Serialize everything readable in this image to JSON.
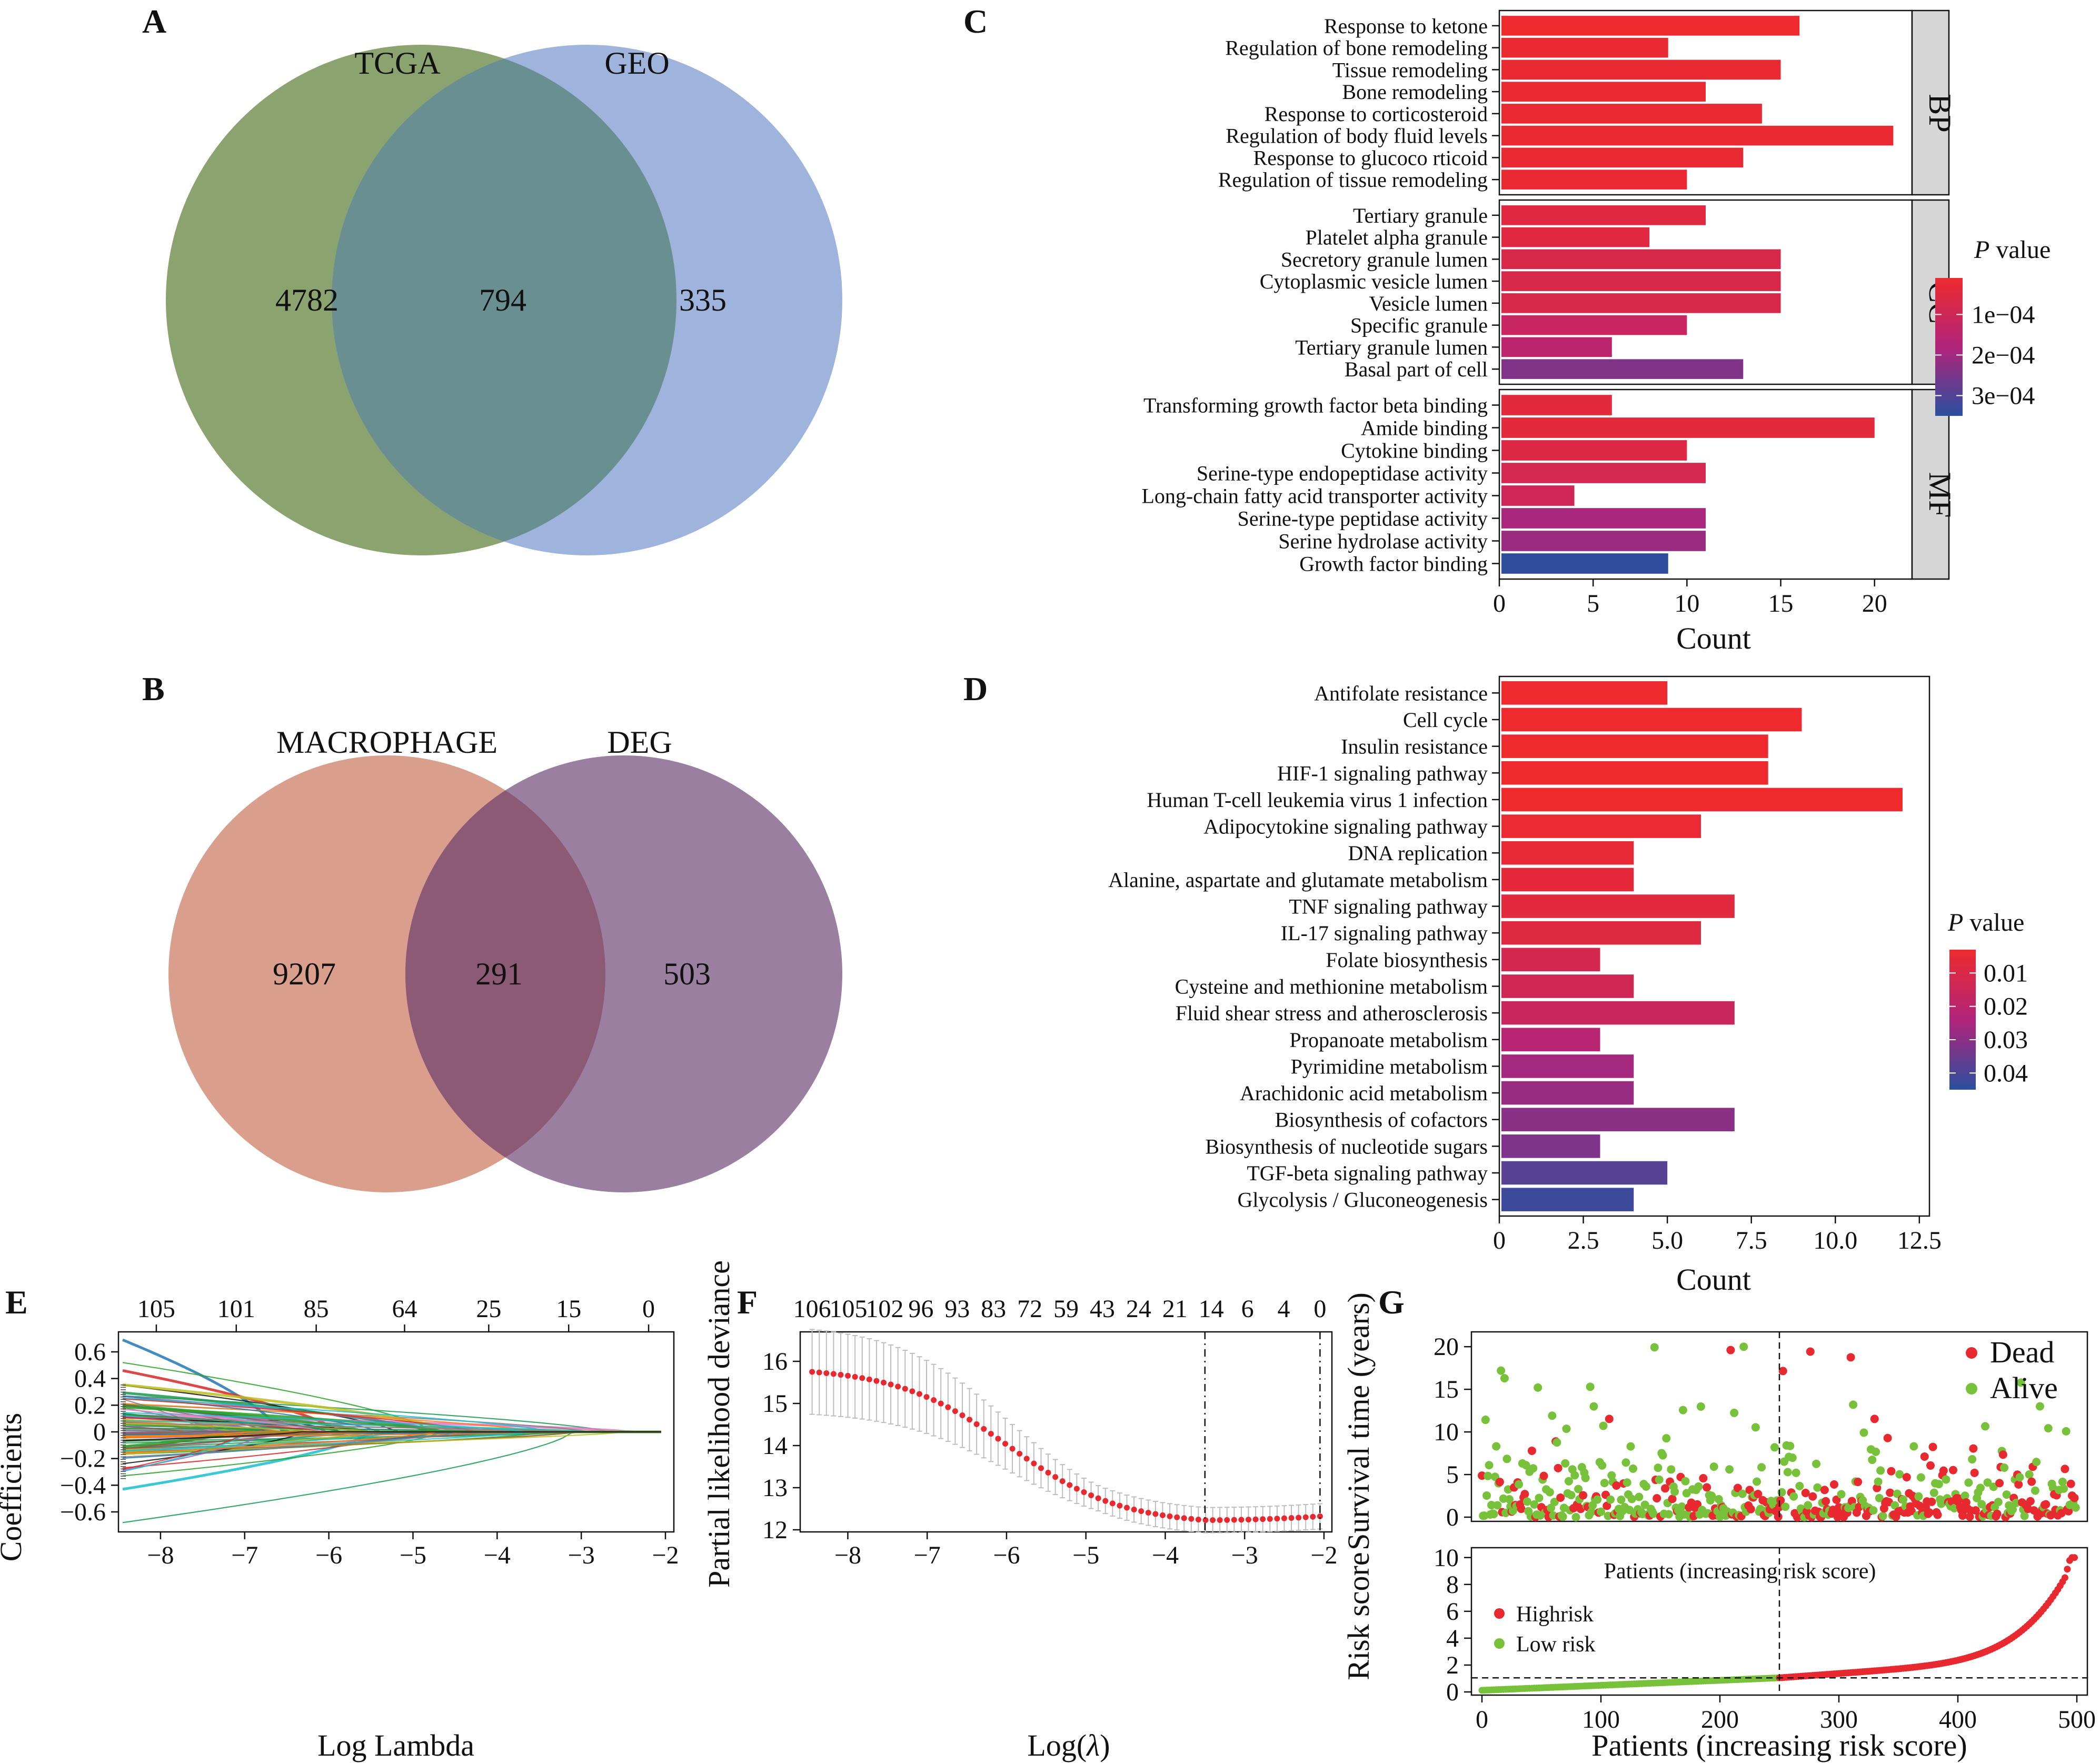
{
  "panels": {
    "A": "A",
    "B": "B",
    "C": "C",
    "D": "D",
    "E": "E",
    "F": "F",
    "G": "G"
  },
  "venn_a": {
    "left_label": "TCGA",
    "right_label": "GEO",
    "left_only": "4782",
    "overlap": "794",
    "right_only": "335",
    "colors": {
      "left": "#8aa36f",
      "right": "#9fb4dc",
      "overlap": "#6a8f91"
    }
  },
  "venn_b": {
    "left_label": "MACROPHAGE",
    "right_label": "DEG",
    "left_only": "9207",
    "overlap": "291",
    "right_only": "503",
    "colors": {
      "left": "#d99f8c",
      "right": "#9b7fa0",
      "overlap": "#8c5a74"
    }
  },
  "chart_data": [
    {
      "panel": "C",
      "type": "bar",
      "orientation": "horizontal",
      "xlabel": "Count",
      "xlim": [
        0,
        22
      ],
      "xticks": [
        0,
        5,
        10,
        15,
        20
      ],
      "facets": [
        {
          "name": "BP",
          "terms": [
            {
              "term": "Response to ketone",
              "count": 16,
              "p": 1e-05
            },
            {
              "term": "Regulation of bone remodeling",
              "count": 9,
              "p": 2e-05
            },
            {
              "term": "Tissue remodeling",
              "count": 15,
              "p": 2e-05
            },
            {
              "term": "Bone remodeling",
              "count": 11,
              "p": 2e-05
            },
            {
              "term": "Response to corticosteroid",
              "count": 14,
              "p": 2e-05
            },
            {
              "term": "Regulation of body fluid levels",
              "count": 21,
              "p": 2e-05
            },
            {
              "term": "Response to glucoco rticoid",
              "count": 13,
              "p": 2e-05
            },
            {
              "term": "Regulation of tissue remodeling",
              "count": 10,
              "p": 2e-05
            }
          ]
        },
        {
          "name": "CC",
          "terms": [
            {
              "term": "Tertiary granule",
              "count": 11,
              "p": 5e-05
            },
            {
              "term": "Platelet alpha granule",
              "count": 8,
              "p": 5e-05
            },
            {
              "term": "Secretory granule lumen",
              "count": 15,
              "p": 7e-05
            },
            {
              "term": "Cytoplasmic vesicle lumen",
              "count": 15,
              "p": 7e-05
            },
            {
              "term": "Vesicle lumen",
              "count": 15,
              "p": 7e-05
            },
            {
              "term": "Specific granule",
              "count": 10,
              "p": 0.00012
            },
            {
              "term": "Tertiary granule lumen",
              "count": 6,
              "p": 0.00015
            },
            {
              "term": "Basal part of cell",
              "count": 13,
              "p": 0.00024
            }
          ]
        },
        {
          "name": "MF",
          "terms": [
            {
              "term": "Transforming growth factor beta binding",
              "count": 6,
              "p": 4e-05
            },
            {
              "term": "Amide binding",
              "count": 20,
              "p": 4e-05
            },
            {
              "term": "Cytokine binding",
              "count": 10,
              "p": 6e-05
            },
            {
              "term": "Serine-type endopeptidase activity",
              "count": 11,
              "p": 8e-05
            },
            {
              "term": "Long-chain fatty acid transporter activity",
              "count": 4,
              "p": 0.0001
            },
            {
              "term": "Serine-type peptidase activity",
              "count": 11,
              "p": 0.00019
            },
            {
              "term": "Serine hydrolase activity",
              "count": 11,
              "p": 0.00021
            },
            {
              "term": "Growth factor binding",
              "count": 9,
              "p": 0.00034
            }
          ]
        }
      ],
      "legend": {
        "title_italic": "P",
        "title_rest": " value",
        "ticks": [
          "1e−04",
          "2e−04",
          "3e−04"
        ],
        "range": [
          1e-05,
          0.00035
        ],
        "colors": [
          "#ee2a2f",
          "#b1247a",
          "#2a4f9f"
        ]
      }
    },
    {
      "panel": "D",
      "type": "bar",
      "orientation": "horizontal",
      "xlabel": "Count",
      "xlim": [
        0,
        12.8
      ],
      "xticks": [
        "0",
        "2.5",
        "5.0",
        "7.5",
        "10.0",
        "12.5"
      ],
      "terms": [
        {
          "term": "Antifolate resistance",
          "count": 5,
          "p": 0.003
        },
        {
          "term": "Cell cycle",
          "count": 9,
          "p": 0.003
        },
        {
          "term": "Insulin resistance",
          "count": 8,
          "p": 0.003
        },
        {
          "term": "HIF-1 signaling pathway",
          "count": 8,
          "p": 0.003
        },
        {
          "term": "Human T-cell leukemia virus 1 infection",
          "count": 12,
          "p": 0.003
        },
        {
          "term": "Adipocytokine signaling pathway",
          "count": 6,
          "p": 0.004
        },
        {
          "term": "DNA replication",
          "count": 4,
          "p": 0.005
        },
        {
          "term": "Alanine, aspartate and glutamate metabolism",
          "count": 4,
          "p": 0.006
        },
        {
          "term": "TNF signaling pathway",
          "count": 7,
          "p": 0.007
        },
        {
          "term": "IL-17 signaling pathway",
          "count": 6,
          "p": 0.008
        },
        {
          "term": "Folate biosynthesis",
          "count": 3,
          "p": 0.012
        },
        {
          "term": "Cysteine and methionine metabolism",
          "count": 4,
          "p": 0.014
        },
        {
          "term": "Fluid shear stress and atherosclerosis",
          "count": 7,
          "p": 0.016
        },
        {
          "term": "Propanoate metabolism",
          "count": 3,
          "p": 0.022
        },
        {
          "term": "Pyrimidine metabolism",
          "count": 4,
          "p": 0.026
        },
        {
          "term": "Arachidonic acid metabolism",
          "count": 4,
          "p": 0.028
        },
        {
          "term": "Biosynthesis of cofactors",
          "count": 7,
          "p": 0.03
        },
        {
          "term": "Biosynthesis of nucleotide sugars",
          "count": 3,
          "p": 0.032
        },
        {
          "term": "TGF-beta signaling pathway",
          "count": 5,
          "p": 0.038
        },
        {
          "term": "Glycolysis / Gluconeogenesis",
          "count": 4,
          "p": 0.042
        }
      ],
      "legend": {
        "title_italic": "P",
        "title_rest": " value",
        "ticks": [
          "0.01",
          "0.02",
          "0.03",
          "0.04"
        ],
        "range": [
          0.003,
          0.045
        ],
        "colors": [
          "#ee2a2f",
          "#b1247a",
          "#2a4f9f"
        ]
      }
    },
    {
      "panel": "E",
      "type": "line",
      "xlabel": "Log Lambda",
      "ylabel": "Coefficients",
      "xlim": [
        -8.5,
        -1.9
      ],
      "ylim": [
        -0.75,
        0.75
      ],
      "xticks": [
        "−8",
        "−7",
        "−6",
        "−5",
        "−4",
        "−3",
        "−2"
      ],
      "yticks": [
        "0.6",
        "0.4",
        "0.2",
        "0",
        "−0.2",
        "−0.4",
        "−0.6"
      ],
      "top_ticks": [
        "105",
        "101",
        "85",
        "64",
        "25",
        "15",
        "0"
      ],
      "series_summary": "coefficient paths for ~106 genes shrinking to 0 as log lambda increases"
    },
    {
      "panel": "F",
      "type": "scatter",
      "xlabel_prefix": "Log(",
      "xlabel_sym": "λ",
      "xlabel_suffix": ")",
      "ylabel": "Partial likelihood deviance",
      "xlim": [
        -8.6,
        -1.9
      ],
      "ylim": [
        11.95,
        16.7
      ],
      "xticks": [
        "−8",
        "−7",
        "−6",
        "−5",
        "−4",
        "−3",
        "−2"
      ],
      "yticks": [
        "16",
        "15",
        "14",
        "13",
        "12"
      ],
      "top_ticks": [
        "106",
        "105",
        "102",
        "96",
        "93",
        "83",
        "72",
        "59",
        "43",
        "24",
        "21",
        "14",
        "6",
        "4",
        "0"
      ],
      "curve": {
        "x_start": -8.45,
        "x_end": -2.05,
        "y_start": 15.75,
        "y_min": 12.23,
        "x_min": -3.5,
        "y_end": 12.32
      },
      "vlines": [
        -3.5,
        -2.05
      ]
    },
    {
      "panel": "G_top",
      "type": "scatter",
      "ylabel": "Survival time (years)",
      "ylim": [
        0,
        21
      ],
      "yticks": [
        "0",
        "5",
        "10",
        "15",
        "20"
      ],
      "legend": [
        "Dead",
        "Alive"
      ],
      "colors": {
        "Dead": "#e8292f",
        "Alive": "#78c13b"
      },
      "n_patients": 500,
      "cutoff": 250
    },
    {
      "panel": "G_bottom",
      "type": "scatter",
      "ylabel": "Risk score",
      "xlabel": "Patients (increasing risk score)",
      "inner_label": "Patients (increasing risk score)",
      "ylim": [
        0,
        10.5
      ],
      "yticks": [
        "0",
        "2",
        "4",
        "6",
        "8",
        "10"
      ],
      "xticks": [
        "0",
        "100",
        "200",
        "300",
        "400",
        "500"
      ],
      "legend": [
        "Highrisk",
        "Low risk"
      ],
      "colors": {
        "Highrisk": "#e8292f",
        "Low risk": "#78c13b"
      },
      "cutoff_index": 250,
      "cutoff_value": 1.05
    }
  ]
}
